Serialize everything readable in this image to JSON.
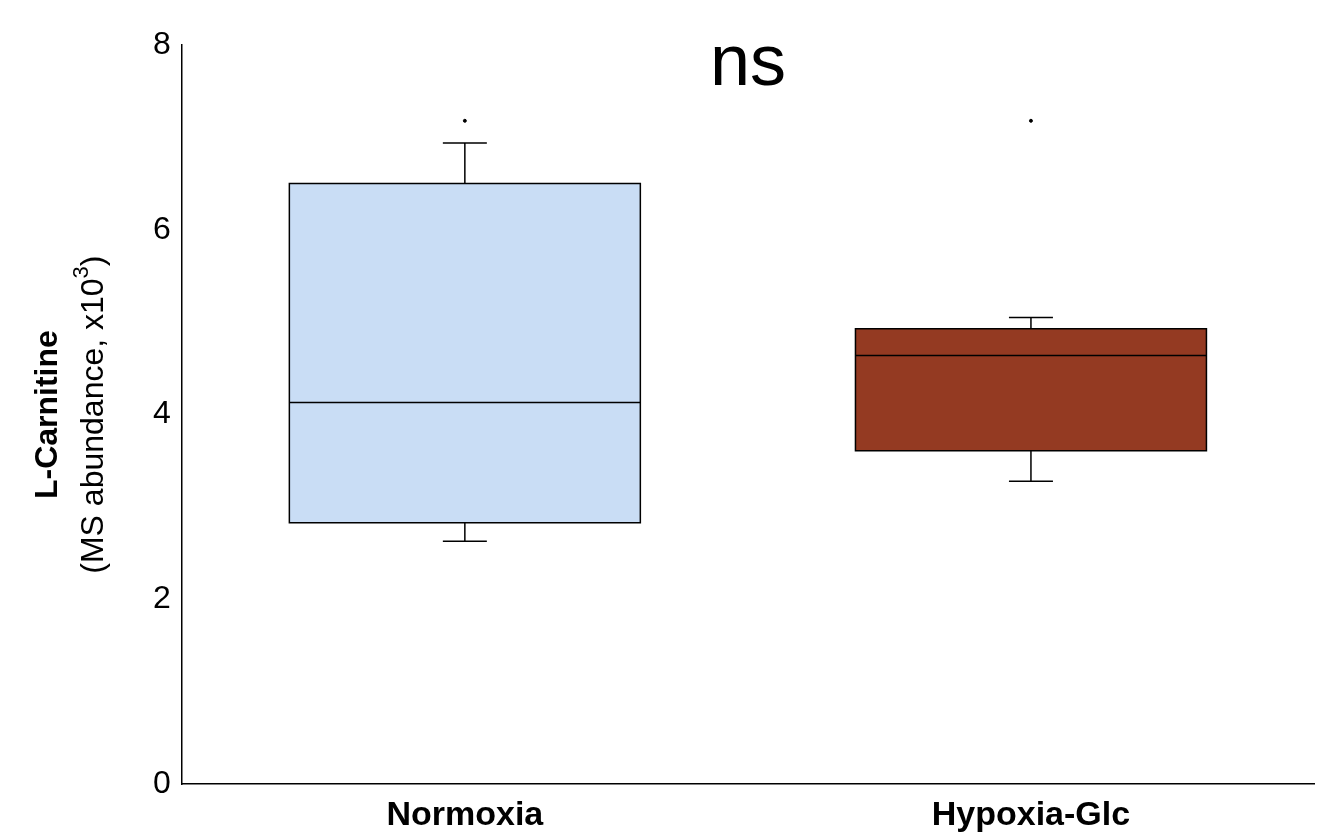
{
  "chart_data": {
    "type": "box",
    "ylabel": "L-Carnitine\n(MS abundance, x10$^{3}$)",
    "annotations": [
      "ns"
    ],
    "categories": [
      "Normoxia",
      "Hypoxia-Glc"
    ],
    "colors": [
      "#c9ddf5",
      "#943a22"
    ],
    "boxes": [
      {
        "low": 2.63,
        "q1": 2.83,
        "median": 4.13,
        "q3": 6.5,
        "high": 6.94,
        "outliers": [
          7.18
        ]
      },
      {
        "low": 3.28,
        "q1": 3.61,
        "median": 4.64,
        "q3": 4.93,
        "high": 5.05,
        "outliers": [
          7.18
        ]
      }
    ],
    "ylim": [
      0,
      8
    ],
    "yticks": [
      0,
      2,
      4,
      6,
      8
    ],
    "grid": false,
    "legend": false
  }
}
